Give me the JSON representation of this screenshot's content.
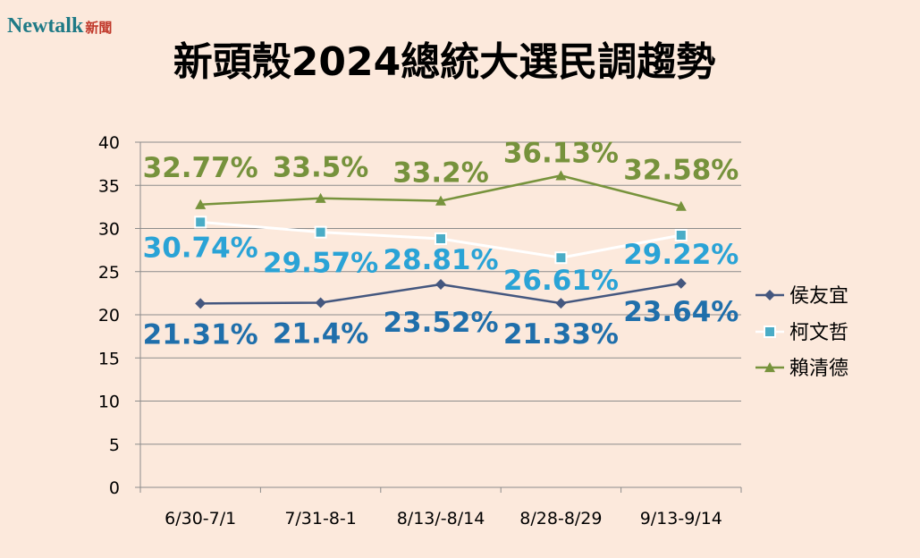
{
  "logo": {
    "brand": "Newtalk",
    "sub": "新聞"
  },
  "chart_data": {
    "type": "line",
    "title": "新頭殼2024總統大選民調趨勢",
    "categories": [
      "6/30-7/1",
      "7/31-8-1",
      "8/13/-8/14",
      "8/28-8/29",
      "9/13-9/14"
    ],
    "ylim": [
      0,
      40
    ],
    "yticks": [
      "0",
      "5",
      "10",
      "15",
      "20",
      "25",
      "30",
      "35",
      "40"
    ],
    "grid": true,
    "legend_position": "right",
    "series": [
      {
        "name": "侯友宜",
        "values": [
          21.31,
          21.4,
          23.52,
          21.33,
          23.64
        ],
        "labels": [
          "21.31%",
          "21.4%",
          "23.52%",
          "21.33%",
          "23.64%"
        ],
        "marker": "diamond",
        "color": "#44577f",
        "label_color": "#1f6fab"
      },
      {
        "name": "柯文哲",
        "values": [
          30.74,
          29.57,
          28.81,
          26.61,
          29.22
        ],
        "labels": [
          "30.74%",
          "29.57%",
          "28.81%",
          "26.61%",
          "29.22%"
        ],
        "marker": "square",
        "color": "#ffffff",
        "marker_color": "#4aacc6",
        "label_color": "#2aa3d6"
      },
      {
        "name": "賴清德",
        "values": [
          32.77,
          33.5,
          33.2,
          36.13,
          32.58
        ],
        "labels": [
          "32.77%",
          "33.5%",
          "33.2%",
          "36.13%",
          "32.58%"
        ],
        "marker": "triangle",
        "color": "#77933c",
        "label_color": "#76923c"
      }
    ]
  }
}
